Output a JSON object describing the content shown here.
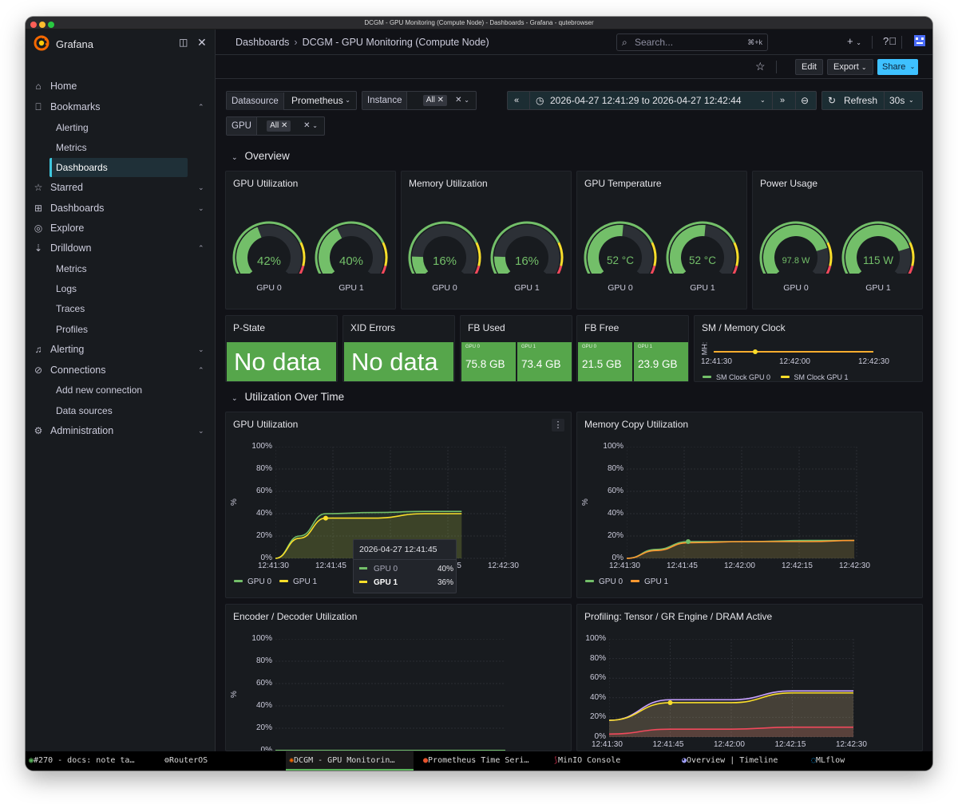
{
  "window": {
    "title": "DCGM - GPU Monitoring (Compute Node) - Dashboards - Grafana - qutebrowser"
  },
  "colors": {
    "accent": "#3ec7de",
    "green": "#73bf69",
    "yellow": "#fade2a",
    "orange": "#ff9830",
    "red": "#f2495c",
    "share": "#3ec1ff",
    "stat_bg": "#56a64b"
  },
  "sidebar": {
    "brand": "Grafana",
    "items": [
      {
        "label": "Home",
        "icon": "home-icon"
      },
      {
        "label": "Bookmarks",
        "icon": "bookmark-icon",
        "expanded": true,
        "children": [
          "Alerting",
          "Metrics",
          "Dashboards"
        ]
      },
      {
        "label": "Starred",
        "icon": "star-icon"
      },
      {
        "label": "Dashboards",
        "icon": "grid-icon"
      },
      {
        "label": "Explore",
        "icon": "compass-icon"
      },
      {
        "label": "Drilldown",
        "icon": "drilldown-icon",
        "expanded": true,
        "children": [
          "Metrics",
          "Logs",
          "Traces",
          "Profiles"
        ]
      },
      {
        "label": "Alerting",
        "icon": "bell-icon"
      },
      {
        "label": "Connections",
        "icon": "connections-icon",
        "expanded": true,
        "children": [
          "Add new connection",
          "Data sources"
        ]
      },
      {
        "label": "Administration",
        "icon": "gear-icon"
      }
    ]
  },
  "topbar": {
    "breadcrumb_root": "Dashboards",
    "breadcrumb_current": "DCGM - GPU Monitoring (Compute Node)",
    "search_placeholder": "Search...",
    "search_shortcut": "⌘+k"
  },
  "toolbar": {
    "edit": "Edit",
    "export": "Export",
    "share": "Share"
  },
  "variables": {
    "datasource_label": "Datasource",
    "datasource_value": "Prometheus",
    "instance_label": "Instance",
    "instance_value": "All",
    "gpu_label": "GPU",
    "gpu_value": "All"
  },
  "timepicker": {
    "range": "2026-04-27 12:41:29 to 2026-04-27 12:42:44",
    "refresh": "Refresh",
    "interval": "30s"
  },
  "sections": {
    "overview": "Overview",
    "utilization": "Utilization Over Time"
  },
  "overview": {
    "gpu_util": {
      "title": "GPU Utilization",
      "gpus": [
        {
          "label": "GPU 0",
          "value": "42%",
          "level": 0.42
        },
        {
          "label": "GPU 1",
          "value": "40%",
          "level": 0.4
        }
      ]
    },
    "mem_util": {
      "title": "Memory Utilization",
      "gpus": [
        {
          "label": "GPU 0",
          "value": "16%",
          "level": 0.16
        },
        {
          "label": "GPU 1",
          "value": "16%",
          "level": 0.16
        }
      ]
    },
    "gpu_temp": {
      "title": "GPU Temperature",
      "gpus": [
        {
          "label": "GPU 0",
          "value": "52 °C",
          "level": 0.52
        },
        {
          "label": "GPU 1",
          "value": "52 °C",
          "level": 0.52
        }
      ]
    },
    "power": {
      "title": "Power Usage",
      "gpus": [
        {
          "label": "GPU 0",
          "value": "97.8 W",
          "level": 0.78
        },
        {
          "label": "GPU 1",
          "value": "115 W",
          "level": 0.78
        }
      ]
    }
  },
  "stats": {
    "pstate": {
      "title": "P-State",
      "value": "No data"
    },
    "xid": {
      "title": "XID Errors",
      "value": "No data"
    },
    "fb_used": {
      "title": "FB Used",
      "cells": [
        {
          "label": "GPU 0",
          "value": "75.8 GB"
        },
        {
          "label": "GPU 1",
          "value": "73.4 GB"
        }
      ]
    },
    "fb_free": {
      "title": "FB Free",
      "cells": [
        {
          "label": "GPU 0",
          "value": "21.5 GB"
        },
        {
          "label": "GPU 1",
          "value": "23.9 GB"
        }
      ]
    },
    "clock": {
      "title": "SM / Memory Clock",
      "ylabel": "MH:",
      "x_ticks": [
        "12:41:30",
        "12:42:00",
        "12:42:30"
      ],
      "legend": [
        "SM Clock GPU 0",
        "SM Clock GPU 1"
      ]
    }
  },
  "charts": {
    "gpu_util": {
      "title": "GPU Utilization",
      "ylabel": "%",
      "y_ticks": [
        "100%",
        "80%",
        "60%",
        "40%",
        "20%",
        "0%"
      ],
      "x_ticks": [
        "12:41:30",
        "12:41:45",
        "12:42:00",
        "12:42:15",
        "12:42:30"
      ],
      "legend": [
        "GPU 0",
        "GPU 1"
      ],
      "tooltip": {
        "time": "2026-04-27 12:41:45",
        "rows": [
          {
            "label": "GPU 0",
            "value": "40%"
          },
          {
            "label": "GPU 1",
            "value": "36%"
          }
        ]
      }
    },
    "mem_copy": {
      "title": "Memory Copy Utilization",
      "ylabel": "%",
      "y_ticks": [
        "100%",
        "80%",
        "60%",
        "40%",
        "20%",
        "0%"
      ],
      "x_ticks": [
        "12:41:30",
        "12:41:45",
        "12:42:00",
        "12:42:15",
        "12:42:30"
      ],
      "legend": [
        "GPU 0",
        "GPU 1"
      ]
    },
    "encdec": {
      "title": "Encoder / Decoder Utilization",
      "ylabel": "%",
      "y_ticks": [
        "100%",
        "80%",
        "60%",
        "40%",
        "20%",
        "0%"
      ]
    },
    "profiling": {
      "title": "Profiling: Tensor / GR Engine / DRAM Active",
      "y_ticks": [
        "100%",
        "80%",
        "60%",
        "40%",
        "20%",
        "0%"
      ],
      "x_ticks": [
        "12:41:30",
        "12:41:45",
        "12:42:00",
        "12:42:15",
        "12:42:30"
      ]
    }
  },
  "chart_data": [
    {
      "type": "line",
      "title": "GPU Utilization",
      "ylabel": "%",
      "x": [
        "12:41:30",
        "12:41:38",
        "12:41:45",
        "12:42:00",
        "12:42:15",
        "12:42:30"
      ],
      "ylim": [
        0,
        100
      ],
      "series": [
        {
          "name": "GPU 0",
          "values": [
            0,
            20,
            40,
            41,
            42,
            42
          ]
        },
        {
          "name": "GPU 1",
          "values": [
            0,
            18,
            36,
            36,
            40,
            40
          ]
        }
      ]
    },
    {
      "type": "line",
      "title": "Memory Copy Utilization",
      "ylabel": "%",
      "x": [
        "12:41:30",
        "12:41:38",
        "12:41:45",
        "12:42:00",
        "12:42:15",
        "12:42:30"
      ],
      "ylim": [
        0,
        100
      ],
      "series": [
        {
          "name": "GPU 0",
          "values": [
            0,
            8,
            15,
            15,
            16,
            16
          ]
        },
        {
          "name": "GPU 1",
          "values": [
            0,
            7,
            14,
            15,
            15,
            16
          ]
        }
      ]
    },
    {
      "type": "line",
      "title": "Profiling: Tensor / GR Engine / DRAM Active",
      "x": [
        "12:41:30",
        "12:41:45",
        "12:42:00",
        "12:42:15",
        "12:42:30"
      ],
      "ylim": [
        0,
        100
      ],
      "series": [
        {
          "values": [
            17,
            38,
            38,
            47,
            47
          ]
        },
        {
          "values": [
            17,
            35,
            35,
            45,
            45
          ]
        },
        {
          "values": [
            3,
            8,
            8,
            10,
            10
          ]
        }
      ]
    }
  ],
  "taskbar": [
    {
      "label": "#270 - docs: note ta…"
    },
    {
      "label": "RouterOS"
    },
    {
      "label": "DCGM - GPU Monitorin…",
      "active": true
    },
    {
      "label": "Prometheus Time Seri…"
    },
    {
      "label": "MinIO Console"
    },
    {
      "label": "Overview | Timeline"
    },
    {
      "label": "MLflow"
    }
  ]
}
